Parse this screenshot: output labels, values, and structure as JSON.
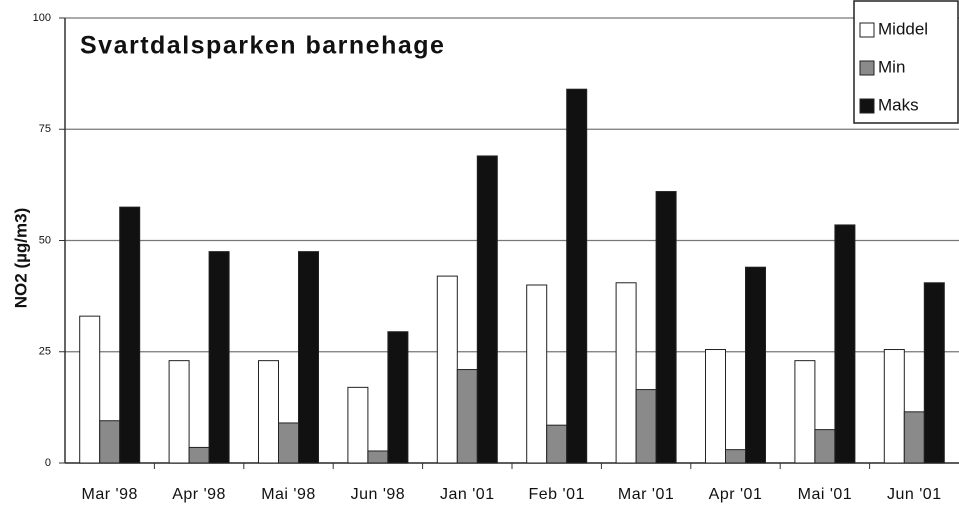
{
  "chart_data": {
    "type": "bar",
    "title": "Svartdalsparken barnehage",
    "y_label": "NO2 (µg/m3)",
    "categories": [
      "Mar '98",
      "Apr '98",
      "Mai '98",
      "Jun '98",
      "Jan '01",
      "Feb '01",
      "Mar '01",
      "Apr '01",
      "Mai '01",
      "Jun '01"
    ],
    "series": [
      {
        "name": "Middel",
        "color": "#ffffff",
        "values": [
          33,
          23,
          23,
          17,
          42,
          40,
          40.5,
          25.5,
          23,
          25.5
        ]
      },
      {
        "name": "Min",
        "color": "#8a8a8a",
        "values": [
          9.5,
          3.5,
          9,
          2.7,
          21,
          8.5,
          16.5,
          3,
          7.5,
          11.5
        ]
      },
      {
        "name": "Maks",
        "color": "#111111",
        "values": [
          57.5,
          47.5,
          47.5,
          29.5,
          69,
          84,
          61,
          44,
          53.5,
          40.5
        ]
      }
    ],
    "ylim": [
      0,
      100
    ],
    "yticks": [
      0,
      25,
      50,
      75,
      100
    ],
    "grid": true,
    "legend": "upper right"
  }
}
